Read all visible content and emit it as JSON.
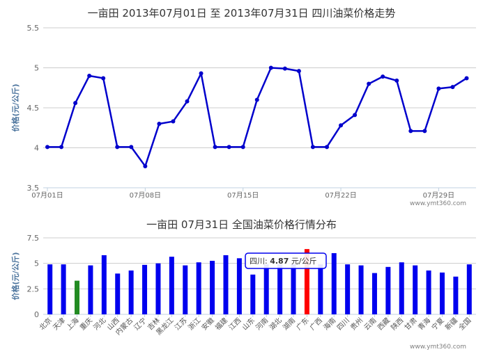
{
  "chart_data": [
    {
      "type": "line",
      "title": "一亩田 2013年07月01日 至 2013年07月31日 四川油菜价格走势",
      "ylabel": "价格(元/公斤)",
      "ylim": [
        3.5,
        5.5
      ],
      "yticks": [
        "3.5",
        "4",
        "4.5",
        "5",
        "5.5"
      ],
      "xtick_labels": [
        "07月01日",
        "07月08日",
        "07月15日",
        "07月22日",
        "07月29日"
      ],
      "x": [
        "07-01",
        "07-02",
        "07-03",
        "07-04",
        "07-05",
        "07-06",
        "07-07",
        "07-08",
        "07-09",
        "07-10",
        "07-11",
        "07-12",
        "07-13",
        "07-14",
        "07-15",
        "07-16",
        "07-17",
        "07-18",
        "07-19",
        "07-20",
        "07-21",
        "07-22",
        "07-23",
        "07-24",
        "07-25",
        "07-26",
        "07-27",
        "07-28",
        "07-29",
        "07-30",
        "07-31"
      ],
      "series": [
        {
          "color": "#0000cc",
          "values": [
            4.01,
            4.01,
            4.56,
            4.9,
            4.87,
            4.01,
            4.01,
            3.77,
            4.3,
            4.33,
            4.58,
            4.93,
            4.01,
            4.01,
            4.01,
            4.6,
            5.0,
            4.99,
            4.96,
            4.01,
            4.01,
            4.28,
            4.41,
            4.8,
            4.89,
            4.84,
            4.21,
            4.21,
            4.74,
            4.76,
            4.87
          ]
        }
      ],
      "grid": true,
      "watermark": "www.ymt360.com"
    },
    {
      "type": "bar",
      "title": "一亩田 07月31日 全国油菜价格行情分布",
      "ylabel": "价格(元/公斤)",
      "ylim": [
        0,
        7.5
      ],
      "yticks": [
        "0",
        "2.5",
        "5",
        "7.5"
      ],
      "categories": [
        "北京",
        "天津",
        "上海",
        "重庆",
        "河北",
        "山西",
        "内蒙古",
        "辽宁",
        "吉林",
        "黑龙江",
        "江苏",
        "浙江",
        "安徽",
        "福建",
        "江西",
        "山东",
        "河南",
        "湖北",
        "湖南",
        "广东",
        "广西",
        "海南",
        "四川",
        "贵州",
        "云南",
        "西藏",
        "陕西",
        "甘肃",
        "青海",
        "宁夏",
        "新疆",
        "全国"
      ],
      "values": [
        4.9,
        4.9,
        3.3,
        4.8,
        5.8,
        4.0,
        4.3,
        4.85,
        5.0,
        5.65,
        4.8,
        5.1,
        5.25,
        5.8,
        5.5,
        3.9,
        4.9,
        4.9,
        4.9,
        6.4,
        4.9,
        6.0,
        4.9,
        4.8,
        4.05,
        4.65,
        5.1,
        4.8,
        4.3,
        4.1,
        3.7,
        4.9
      ],
      "colors": {
        "default": "#0000ee",
        "shanghai": "#228b22",
        "guangdong": "#ff0000"
      },
      "highlight_colors": {
        "上海": "#228b22",
        "广东": "#ff0000"
      },
      "tooltip": {
        "name": "四川",
        "value": "4.87",
        "unit": "元/公斤"
      },
      "grid": true,
      "watermark": "www.ymt360.com"
    }
  ]
}
